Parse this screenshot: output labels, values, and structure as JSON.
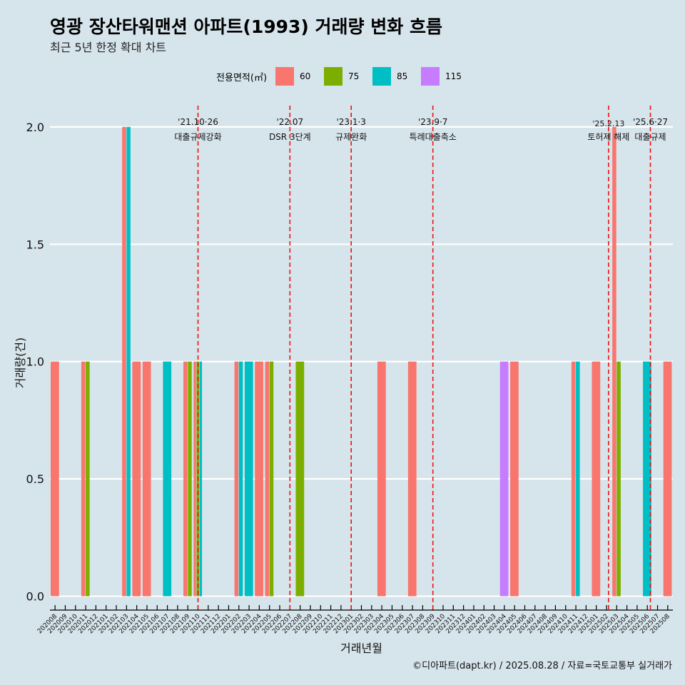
{
  "chart_data": {
    "type": "bar",
    "title": "영광 장산타워맨션 아파트(1993) 거래량 변화 흐름",
    "subtitle": "최근 5년 한정 확대 차트",
    "xlabel": "거래년월",
    "ylabel": "거래량(건)",
    "ylim": [
      -0.05,
      2.1
    ],
    "yticks": [
      "0.0",
      "0.5",
      "1.0",
      "1.5",
      "2.0"
    ],
    "legend": {
      "title": "전용면적(㎡)",
      "position": "top"
    },
    "categories": [
      "202008",
      "202009",
      "202010",
      "202011",
      "202012",
      "202101",
      "202102",
      "202103",
      "202104",
      "202105",
      "202106",
      "202107",
      "202108",
      "202109",
      "202110",
      "202111",
      "202112",
      "202201",
      "202202",
      "202203",
      "202204",
      "202205",
      "202206",
      "202207",
      "202208",
      "202209",
      "202210",
      "202211",
      "202212",
      "202301",
      "202302",
      "202303",
      "202304",
      "202305",
      "202306",
      "202307",
      "202308",
      "202309",
      "202310",
      "202311",
      "202312",
      "202401",
      "202402",
      "202403",
      "202404",
      "202405",
      "202406",
      "202407",
      "202408",
      "202409",
      "202410",
      "202411",
      "202412",
      "202501",
      "202502",
      "202503",
      "202504",
      "202505",
      "202506",
      "202507",
      "202508"
    ],
    "series": [
      {
        "name": "60",
        "color": "#f8766d",
        "values": {
          "202008": 1,
          "202011": 1,
          "202103": 2,
          "202104": 1,
          "202105": 1,
          "202109": 1,
          "202110": 1,
          "202202": 1,
          "202204": 1,
          "202205": 1,
          "202304": 1,
          "202307": 1,
          "202405": 1,
          "202411": 1,
          "202501": 1,
          "202503": 2,
          "202508": 1
        }
      },
      {
        "name": "75",
        "color": "#7cae00",
        "values": {
          "202011": 1,
          "202109": 1,
          "202110": 1,
          "202205": 1,
          "202208": 1,
          "202503": 1
        }
      },
      {
        "name": "85",
        "color": "#00bfc4",
        "values": {
          "202103": 2,
          "202107": 1,
          "202110": 1,
          "202202": 1,
          "202203": 1,
          "202411": 1,
          "202506": 1
        }
      },
      {
        "name": "115",
        "color": "#c77cff",
        "values": {
          "202404": 1
        }
      }
    ],
    "annotations": [
      {
        "line1": "'21.10·26",
        "line2": "대출규제강화",
        "x": "202110",
        "offset": 0
      },
      {
        "line1": "'22.07",
        "line2": "DSR 3단계",
        "x": "202207",
        "offset": 0
      },
      {
        "line1": "'23.1·3",
        "line2": "규제완화",
        "x": "202301",
        "offset": 0
      },
      {
        "line1": "'23.9·7",
        "line2": "특례대출축소",
        "x": "202309",
        "offset": 0
      },
      {
        "line1": "'25.2.13",
        "line2": "토허제 해제",
        "x": "202502",
        "offset": 0.2
      },
      {
        "line1": "'25.6·27",
        "line2": "대출규제",
        "x": "202506",
        "offset": 0.3
      }
    ],
    "grid": true
  },
  "caption": "©디아파트(dapt.kr) / 2025.08.28 / 자료=국토교통부 실거래가"
}
